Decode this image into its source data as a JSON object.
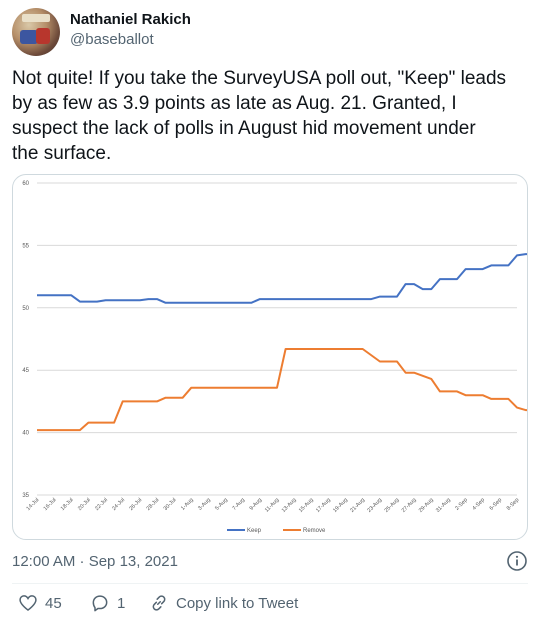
{
  "author": {
    "name": "Nathaniel Rakich",
    "handle": "@baseballot"
  },
  "tweet": {
    "lines": [
      "Not quite! If you take the SurveyUSA poll out, \"Keep\" leads",
      "by as few as 3.9 points as late as Aug. 21. Granted, I",
      "suspect the lack of polls in August hid movement under",
      "the surface."
    ],
    "timestamp": "12:00 AM · Sep 13, 2021"
  },
  "actions": {
    "likes": "45",
    "replies": "1",
    "share_label": "Copy link to Tweet"
  },
  "icons": {
    "info": "info-icon",
    "like": "heart-icon",
    "reply": "reply-icon",
    "share": "link-icon"
  },
  "colors": {
    "keep": "#4472c4",
    "remove": "#ed7d31",
    "muted": "#536471"
  },
  "chart_data": {
    "type": "line",
    "title": "",
    "xlabel": "",
    "ylabel": "",
    "ylim": [
      35,
      60
    ],
    "yticks": [
      "35",
      "40",
      "45",
      "50",
      "55",
      "60"
    ],
    "grid": true,
    "legend": "bottom",
    "categories": [
      "14-Jul",
      "16-Jul",
      "18-Jul",
      "20-Jul",
      "22-Jul",
      "24-Jul",
      "26-Jul",
      "28-Jul",
      "30-Jul",
      "1-Aug",
      "3-Aug",
      "5-Aug",
      "7-Aug",
      "9-Aug",
      "11-Aug",
      "13-Aug",
      "15-Aug",
      "17-Aug",
      "19-Aug",
      "21-Aug",
      "23-Aug",
      "25-Aug",
      "27-Aug",
      "29-Aug",
      "31-Aug",
      "2-Sep",
      "4-Sep",
      "6-Sep",
      "8-Sep"
    ],
    "series": [
      {
        "name": "Keep",
        "color": "#4472c4",
        "points": [
          [
            0,
            51.0
          ],
          [
            4,
            51.0
          ],
          [
            5,
            50.5
          ],
          [
            7,
            50.5
          ],
          [
            8,
            50.6
          ],
          [
            12,
            50.6
          ],
          [
            13,
            50.7
          ],
          [
            14,
            50.7
          ],
          [
            15,
            50.4
          ],
          [
            17,
            50.4
          ],
          [
            18,
            50.4
          ],
          [
            25,
            50.4
          ],
          [
            26,
            50.7
          ],
          [
            39,
            50.7
          ],
          [
            40,
            50.9
          ],
          [
            42,
            50.9
          ],
          [
            43,
            51.9
          ],
          [
            44,
            51.9
          ],
          [
            45,
            51.5
          ],
          [
            46,
            51.5
          ],
          [
            47,
            52.3
          ],
          [
            49,
            52.3
          ],
          [
            50,
            53.1
          ],
          [
            52,
            53.1
          ],
          [
            53,
            53.4
          ],
          [
            55,
            53.4
          ],
          [
            56,
            54.2
          ],
          [
            57,
            54.3
          ],
          [
            58,
            54.3
          ]
        ]
      },
      {
        "name": "Remove",
        "color": "#ed7d31",
        "points": [
          [
            0,
            40.2
          ],
          [
            5,
            40.2
          ],
          [
            6,
            40.8
          ],
          [
            9,
            40.8
          ],
          [
            10,
            42.5
          ],
          [
            14,
            42.5
          ],
          [
            15,
            42.8
          ],
          [
            17,
            42.8
          ],
          [
            18,
            43.6
          ],
          [
            28,
            43.6
          ],
          [
            29,
            46.7
          ],
          [
            38,
            46.7
          ],
          [
            40,
            45.7
          ],
          [
            42,
            45.7
          ],
          [
            43,
            44.8
          ],
          [
            44,
            44.8
          ],
          [
            46,
            44.3
          ],
          [
            47,
            43.3
          ],
          [
            49,
            43.3
          ],
          [
            50,
            43.0
          ],
          [
            52,
            43.0
          ],
          [
            53,
            42.7
          ],
          [
            55,
            42.7
          ],
          [
            56,
            42.0
          ],
          [
            57,
            41.8
          ],
          [
            58,
            41.8
          ]
        ]
      }
    ]
  }
}
